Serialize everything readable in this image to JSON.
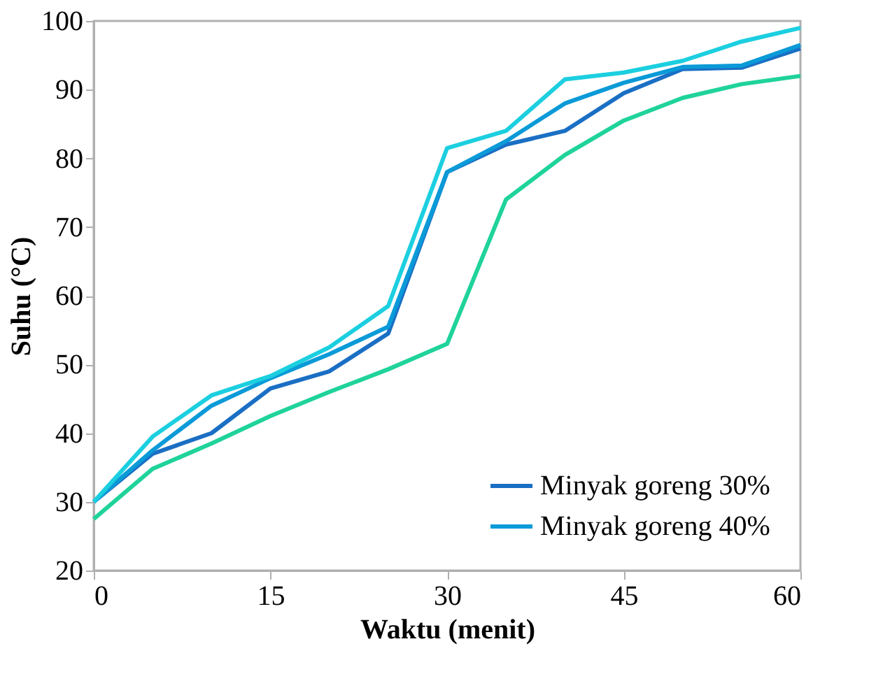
{
  "chart_data": {
    "type": "line",
    "xlabel": "Waktu (menit)",
    "ylabel": "Suhu (°C)",
    "x": [
      0,
      5,
      10,
      15,
      20,
      25,
      30,
      35,
      40,
      45,
      50,
      55,
      60
    ],
    "series": [
      {
        "name": "Minyak goreng 30%",
        "color": "#1a6fc4",
        "values": [
          30,
          37,
          40,
          46.5,
          49,
          54.5,
          78,
          82,
          84,
          89.5,
          93,
          93.2,
          96
        ]
      },
      {
        "name": "Minyak goreng 40%",
        "color": "#0a9ad8",
        "values": [
          30,
          37.5,
          44,
          48,
          51.5,
          55.5,
          78,
          82.5,
          88,
          91,
          93.3,
          93.5,
          96.5
        ]
      },
      {
        "color": "#1ccfe0",
        "values": [
          30,
          39.5,
          45.5,
          48.3,
          52.5,
          58.5,
          81.5,
          84,
          91.5,
          92.5,
          94.2,
          97,
          99
        ]
      },
      {
        "color": "#1fd39b",
        "values": [
          27.5,
          34.8,
          38.5,
          42.5,
          46,
          49.3,
          53,
          74,
          80.5,
          85.5,
          88.8,
          90.8,
          92
        ]
      }
    ],
    "xlim": [
      0,
      60
    ],
    "xticks": [
      0,
      15,
      30,
      45,
      60
    ],
    "ylim": [
      20,
      100
    ],
    "yticks": [
      20,
      30,
      40,
      50,
      60,
      70,
      80,
      90,
      100
    ],
    "grid": false,
    "legend": "bottom right",
    "marker": "none",
    "line_style": "solid"
  }
}
